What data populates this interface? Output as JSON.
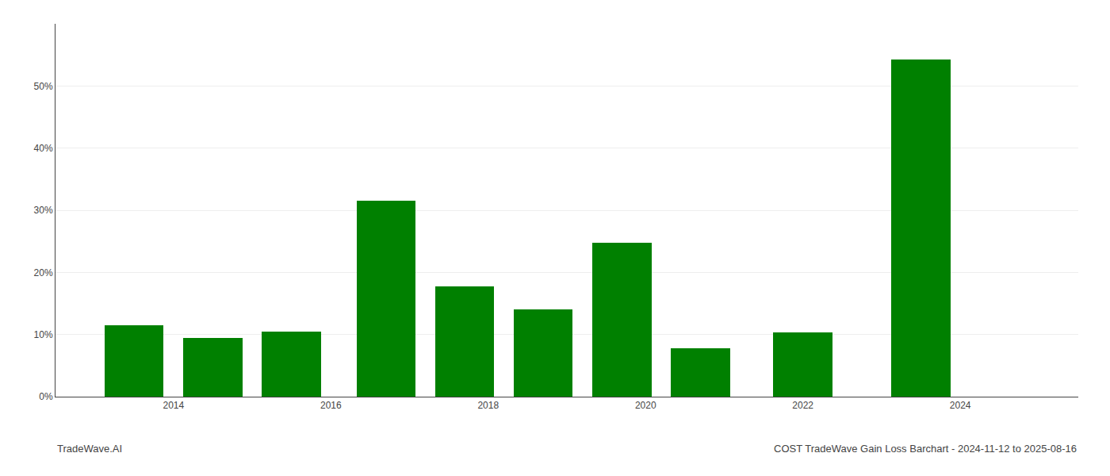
{
  "chart_data": {
    "type": "bar",
    "x": [
      2013.5,
      2014.5,
      2015.5,
      2016.7,
      2017.7,
      2018.7,
      2019.7,
      2020.7,
      2022.0,
      2023.5
    ],
    "values": [
      0.115,
      0.094,
      0.105,
      0.315,
      0.178,
      0.14,
      0.248,
      0.078,
      0.104,
      0.543
    ],
    "color": "#008000",
    "xlim": [
      2012.5,
      2025.5
    ],
    "xticks": [
      2014,
      2016,
      2018,
      2020,
      2022,
      2024
    ],
    "ylim": [
      0.0,
      0.6
    ],
    "yticks": [
      {
        "value": 0.0,
        "label": "0%"
      },
      {
        "value": 0.1,
        "label": "10%"
      },
      {
        "value": 0.2,
        "label": "20%"
      },
      {
        "value": 0.3,
        "label": "30%"
      },
      {
        "value": 0.4,
        "label": "40%"
      },
      {
        "value": 0.5,
        "label": "50%"
      }
    ],
    "grid": true,
    "annotations": [
      "TradeWave.AI",
      "COST TradeWave Gain Loss Barchart - 2024-11-12 to 2025-08-16"
    ]
  }
}
